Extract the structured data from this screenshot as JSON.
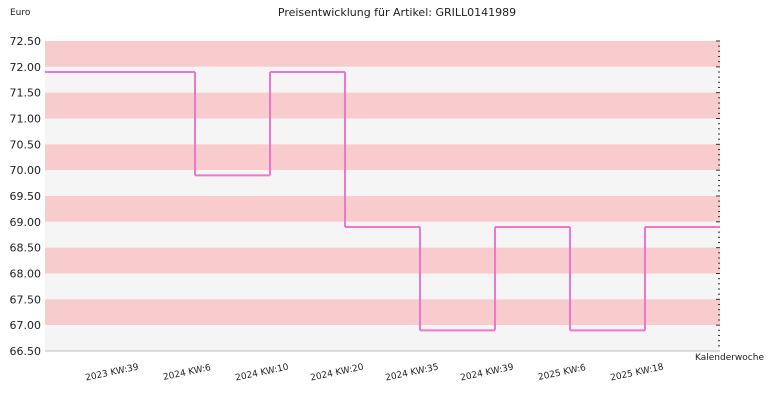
{
  "chart_data": {
    "type": "line",
    "step": true,
    "title": "Preisentwicklung für Artikel: GRILL0141989",
    "ylabel": "Euro",
    "xlabel": "Kalenderwoche",
    "ylim": [
      66.5,
      72.5
    ],
    "yticks": [
      "72.50",
      "72.00",
      "71.50",
      "71.00",
      "70.50",
      "70.00",
      "69.50",
      "69.00",
      "68.50",
      "68.00",
      "67.50",
      "67.00",
      "66.50"
    ],
    "categories": [
      "2023 KW:39",
      "2024 KW:6",
      "2024 KW:10",
      "2024 KW:20",
      "2024 KW:35",
      "2024 KW:39",
      "2025 KW:6",
      "2025 KW:18"
    ],
    "series": [
      {
        "values": [
          71.9,
          69.9,
          71.9,
          68.9,
          66.9,
          68.9,
          66.9,
          68.9
        ]
      }
    ],
    "colors": {
      "line": "#ee77cc",
      "band_dark": "#f8cccc",
      "band_light": "#f5f5f5"
    },
    "grid": true,
    "legend": "none"
  }
}
